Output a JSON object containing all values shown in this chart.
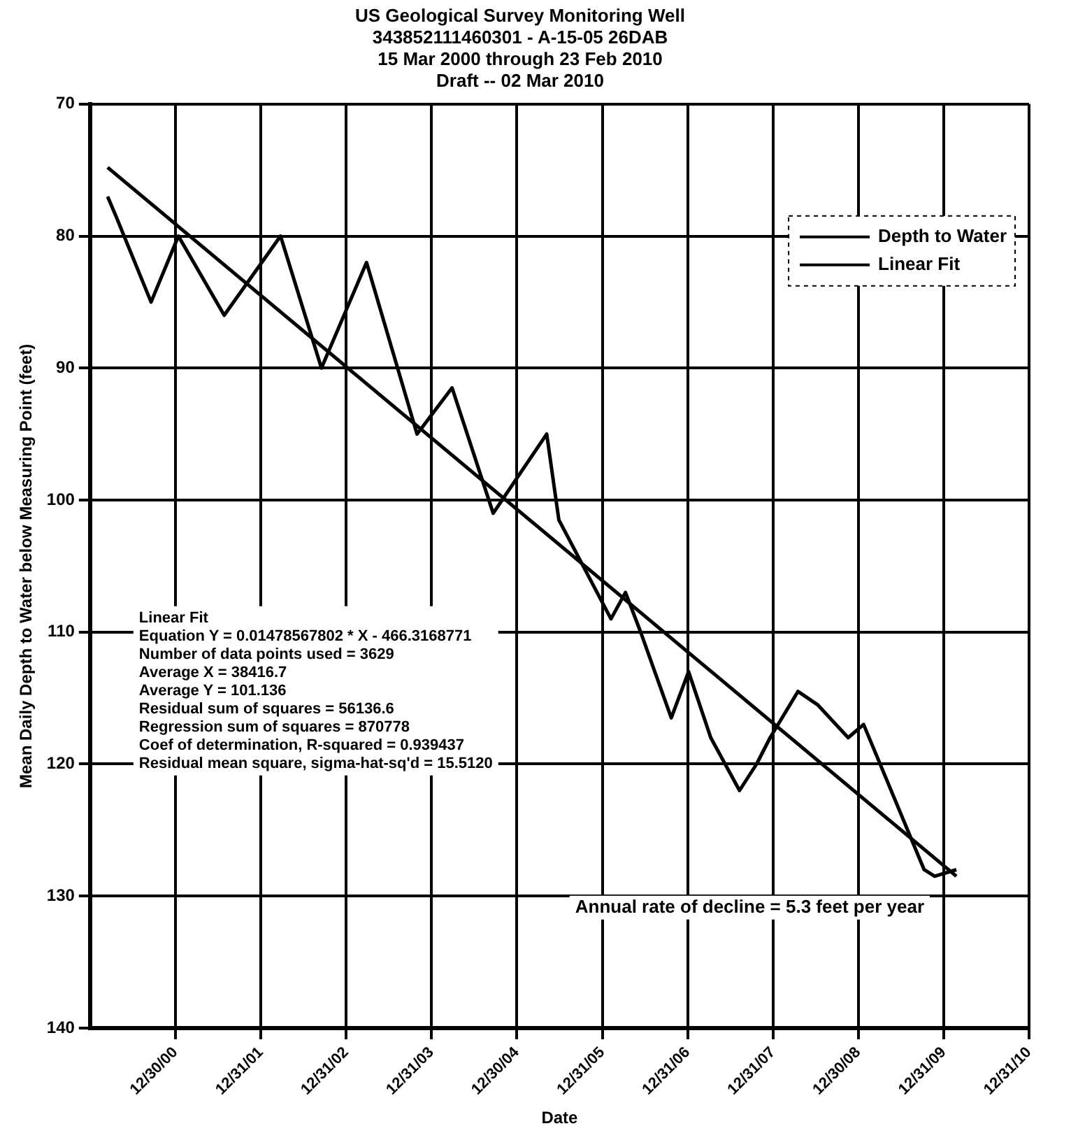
{
  "chart_data": {
    "type": "line",
    "title": "US Geological Survey Monitoring Well\n343852111460301 - A-15-05 26DAB\n15 Mar 2000 through 23 Feb 2010\nDraft -- 02 Mar 2010",
    "xlabel": "Date",
    "ylabel": "Mean Daily Depth to Water below Measuring Point (feet)",
    "xlim": [
      "1999-12-31",
      "2010-12-31"
    ],
    "xticks": [
      {
        "value": "2000-12-30",
        "label": "12/30/00"
      },
      {
        "value": "2001-12-31",
        "label": "12/31/01"
      },
      {
        "value": "2002-12-31",
        "label": "12/31/02"
      },
      {
        "value": "2003-12-31",
        "label": "12/31/03"
      },
      {
        "value": "2004-12-30",
        "label": "12/30/04"
      },
      {
        "value": "2005-12-31",
        "label": "12/31/05"
      },
      {
        "value": "2006-12-31",
        "label": "12/31/06"
      },
      {
        "value": "2007-12-31",
        "label": "12/31/07"
      },
      {
        "value": "2008-12-30",
        "label": "12/30/08"
      },
      {
        "value": "2009-12-31",
        "label": "12/31/09"
      },
      {
        "value": "2010-12-31",
        "label": "12/31/10"
      }
    ],
    "ylim": [
      140,
      70
    ],
    "yticks": [
      70,
      80,
      90,
      100,
      110,
      120,
      130,
      140
    ],
    "grid": true,
    "legend": "top right",
    "marker": "none",
    "series": [
      {
        "name": "Depth to Water",
        "color": "#000000",
        "x": [
          "2000-03-15",
          "2000-04-20",
          "2000-09-17",
          "2001-01-12",
          "2001-07-27",
          "2002-03-25",
          "2002-09-16",
          "2003-03-28",
          "2003-10-30",
          "2004-03-28",
          "2004-09-20",
          "2005-05-07",
          "2005-06-28",
          "2006-02-06",
          "2006-04-09",
          "2006-06-13",
          "2006-10-22",
          "2007-01-04",
          "2007-04-09",
          "2007-08-10",
          "2007-10-22",
          "2007-12-19",
          "2008-04-16",
          "2008-07-09",
          "2008-11-17",
          "2009-01-22",
          "2009-10-08",
          "2009-11-22",
          "2010-02-23"
        ],
        "values": [
          77,
          78.5,
          85,
          80,
          86,
          80,
          90,
          82,
          95,
          91.5,
          101,
          95,
          101.5,
          109,
          107,
          110,
          116.5,
          113,
          118,
          122,
          120,
          118,
          114.5,
          115.5,
          118,
          117,
          128,
          128.5,
          128
        ]
      },
      {
        "name": "Linear Fit",
        "color": "#000000",
        "x": [
          "2000-03-15",
          "2010-02-23"
        ],
        "values": [
          74.8,
          128.5
        ]
      }
    ],
    "annotations": [
      "Linear Fit\nEquation Y = 0.01478567802 * X - 466.3168771\nNumber of data points used = 3629\nAverage X = 38416.7\nAverage Y = 101.136\nResidual sum of squares = 56136.6\nRegression sum of squares = 870778\nCoef of determination, R-squared = 0.939437\nResidual mean square, sigma-hat-sq'd = 15.5120",
      "Annual rate of decline = 5.3 feet per year"
    ]
  }
}
